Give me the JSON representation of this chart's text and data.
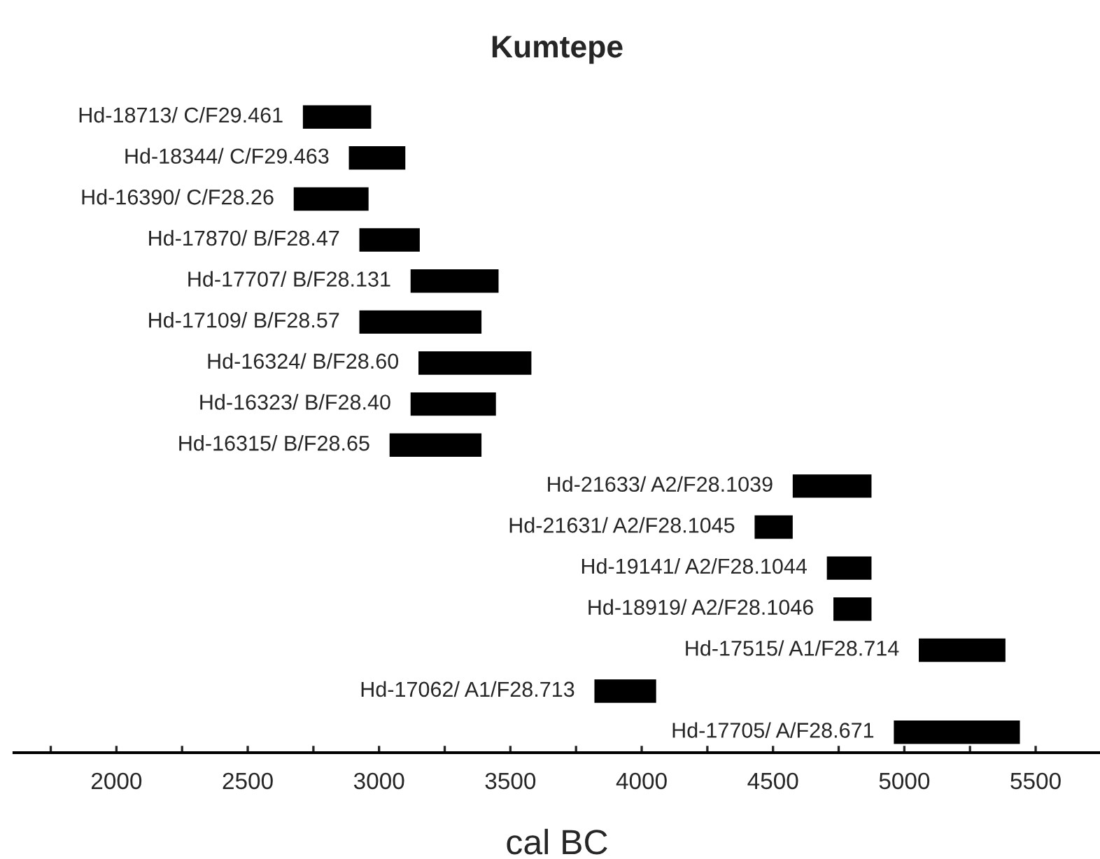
{
  "chart_data": {
    "type": "bar",
    "orientation": "horizontal",
    "title": "Kumtepe",
    "xlabel": "cal BC",
    "categories": [
      "Hd-18713/ C/F29.461",
      "Hd-18344/ C/F29.463",
      "Hd-16390/ C/F28.26",
      "Hd-17870/ B/F28.47",
      "Hd-17707/ B/F28.131",
      "Hd-17109/ B/F28.57",
      "Hd-16324/ B/F28.60",
      "Hd-16323/ B/F28.40",
      "Hd-16315/ B/F28.65",
      "Hd-21633/ A2/F28.1039",
      "Hd-21631/ A2/F28.1045",
      "Hd-19141/ A2/F28.1044",
      "Hd-18919/ A2/F28.1046",
      "Hd-17515/ A1/F28.714",
      "Hd-17062/ A1/F28.713",
      "Hd-17705/ A/F28.671"
    ],
    "base": [
      2710,
      2885,
      2675,
      2925,
      3120,
      2925,
      3150,
      3120,
      3040,
      4575,
      4430,
      4705,
      4730,
      5055,
      3820,
      4960
    ],
    "values": [
      260,
      215,
      285,
      230,
      335,
      465,
      430,
      325,
      350,
      300,
      145,
      170,
      145,
      330,
      235,
      480
    ],
    "color": "#000000",
    "xlim": [
      1610,
      5745
    ],
    "xticks": [
      {
        "value": 1750,
        "label": null
      },
      2000,
      {
        "value": 2250,
        "label": null
      },
      2500,
      {
        "value": 2750,
        "label": null
      },
      3000,
      {
        "value": 3250,
        "label": null
      },
      3500,
      {
        "value": 3750,
        "label": null
      },
      4000,
      {
        "value": 4250,
        "label": null
      },
      4500,
      {
        "value": 4750,
        "label": null
      },
      5000,
      {
        "value": 5250,
        "label": null
      },
      5500
    ],
    "tick_labels": "x",
    "grid": false,
    "legend": false
  }
}
